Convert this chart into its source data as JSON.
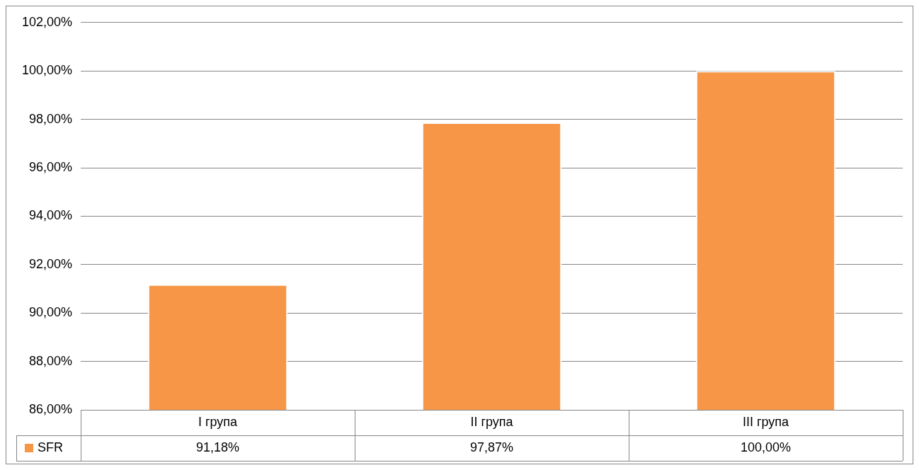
{
  "chart_data": {
    "type": "bar",
    "categories": [
      "I група",
      "II група",
      "III група"
    ],
    "series": [
      {
        "name": "SFR",
        "color": "#f79646",
        "values": [
          91.18,
          97.87,
          100.0
        ],
        "value_labels": [
          "91,18%",
          "97,87%",
          "100,00%"
        ]
      }
    ],
    "ylim": [
      86,
      102
    ],
    "yticks": [
      {
        "value": 86,
        "label": "86,00%"
      },
      {
        "value": 88,
        "label": "88,00%"
      },
      {
        "value": 90,
        "label": "90,00%"
      },
      {
        "value": 92,
        "label": "92,00%"
      },
      {
        "value": 94,
        "label": "94,00%"
      },
      {
        "value": 96,
        "label": "96,00%"
      },
      {
        "value": 98,
        "label": "98,00%"
      },
      {
        "value": 100,
        "label": "100,00%"
      },
      {
        "value": 102,
        "label": "102,00%"
      }
    ],
    "grid": "y",
    "legend": "bottom"
  }
}
